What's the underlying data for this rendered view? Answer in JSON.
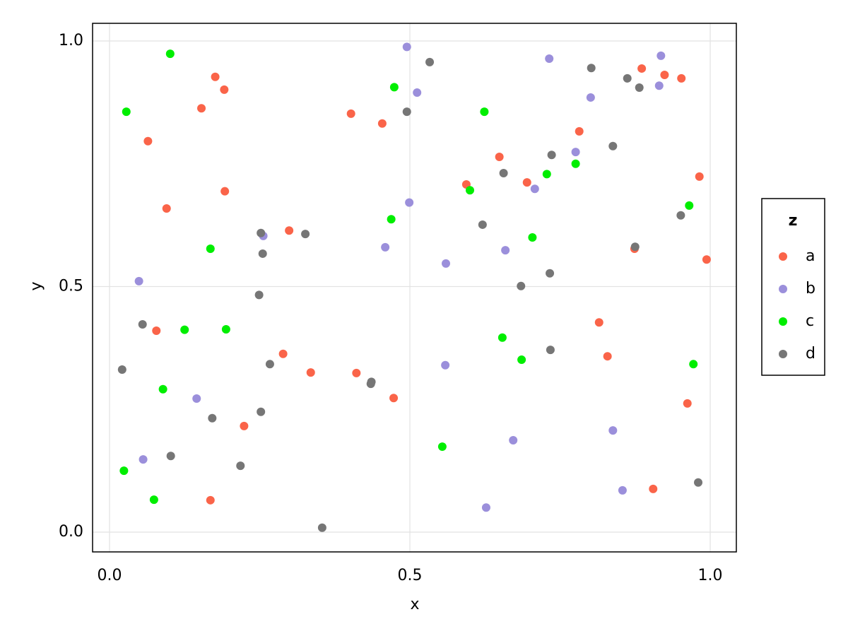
{
  "chart_data": {
    "type": "scatter",
    "x_label": "x",
    "y_label": "y",
    "xlim": [
      -0.0282,
      1.0435
    ],
    "ylim": [
      -0.0403,
      1.036
    ],
    "xticks": [
      {
        "value": 0,
        "label": "0.0"
      },
      0.5,
      {
        "value": 1,
        "label": "1.0"
      }
    ],
    "yticks": [
      {
        "value": 0,
        "label": "0.0"
      },
      0.5,
      {
        "value": 1,
        "label": "1.0"
      }
    ],
    "grid": true,
    "legend_title": "z",
    "legend_position": "right",
    "series": [
      {
        "name": "a",
        "color": "#fa6449",
        "x": [
          0.176,
          0.191,
          0.153,
          0.064,
          0.095,
          0.192,
          0.078,
          0.299,
          0.289,
          0.335,
          0.411,
          0.473,
          0.224,
          0.168,
          0.402,
          0.454,
          0.594,
          0.649,
          0.695,
          0.782,
          0.815,
          0.829,
          0.874,
          0.886,
          0.924,
          0.952,
          0.982,
          0.994,
          0.962,
          0.905
        ],
        "values": [
          0.927,
          0.901,
          0.863,
          0.796,
          0.659,
          0.694,
          0.41,
          0.614,
          0.363,
          0.325,
          0.324,
          0.273,
          0.216,
          0.065,
          0.852,
          0.832,
          0.708,
          0.764,
          0.712,
          0.816,
          0.427,
          0.358,
          0.577,
          0.944,
          0.931,
          0.924,
          0.724,
          0.555,
          0.262,
          0.088
        ]
      },
      {
        "name": "b",
        "color": "#9b8fdb",
        "x": [
          0.495,
          0.512,
          0.499,
          0.256,
          0.459,
          0.049,
          0.56,
          0.659,
          0.708,
          0.732,
          0.776,
          0.801,
          0.918,
          0.915,
          0.559,
          0.145,
          0.056,
          0.672,
          0.838,
          0.854,
          0.627
        ],
        "values": [
          0.988,
          0.895,
          0.671,
          0.603,
          0.58,
          0.511,
          0.547,
          0.574,
          0.699,
          0.964,
          0.774,
          0.885,
          0.97,
          0.909,
          0.34,
          0.272,
          0.148,
          0.187,
          0.207,
          0.085,
          0.05
        ]
      },
      {
        "name": "c",
        "color": "#00ee00",
        "x": [
          0.101,
          0.028,
          0.474,
          0.624,
          0.168,
          0.469,
          0.6,
          0.704,
          0.728,
          0.776,
          0.965,
          0.125,
          0.194,
          0.089,
          0.024,
          0.074,
          0.554,
          0.654,
          0.686,
          0.972
        ],
        "values": [
          0.974,
          0.856,
          0.906,
          0.856,
          0.577,
          0.637,
          0.696,
          0.6,
          0.729,
          0.75,
          0.665,
          0.412,
          0.413,
          0.291,
          0.125,
          0.066,
          0.174,
          0.396,
          0.351,
          0.342
        ]
      },
      {
        "name": "d",
        "color": "#767676",
        "x": [
          0.533,
          0.495,
          0.252,
          0.326,
          0.255,
          0.249,
          0.055,
          0.021,
          0.267,
          0.436,
          0.435,
          0.252,
          0.171,
          0.102,
          0.218,
          0.354,
          0.621,
          0.656,
          0.736,
          0.802,
          0.838,
          0.862,
          0.882,
          0.951,
          0.875,
          0.685,
          0.733,
          0.734,
          0.98
        ],
        "values": [
          0.957,
          0.856,
          0.609,
          0.607,
          0.567,
          0.483,
          0.423,
          0.331,
          0.342,
          0.306,
          0.302,
          0.245,
          0.232,
          0.155,
          0.135,
          0.009,
          0.626,
          0.731,
          0.768,
          0.945,
          0.786,
          0.924,
          0.905,
          0.645,
          0.581,
          0.501,
          0.527,
          0.371,
          0.101
        ]
      }
    ]
  }
}
